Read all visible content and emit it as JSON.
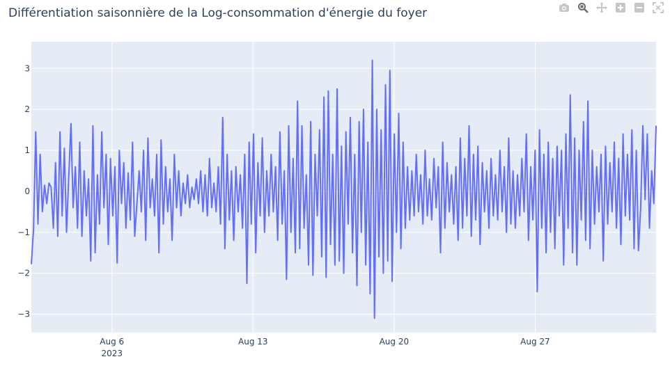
{
  "title": "Différentiation saisonnière de la Log-consommation d'énergie du foyer",
  "modebar": {
    "icons": [
      "camera-icon",
      "zoom-icon",
      "pan-icon",
      "zoom-in-icon",
      "zoom-out-icon",
      "autoscale-icon"
    ]
  },
  "colors": {
    "line": "#636efa",
    "plot_bg": "#e5ecf6",
    "grid": "#ffffff",
    "text": "#2a3f5f"
  },
  "chart_data": {
    "type": "line",
    "title": "Différentiation saisonnière de la Log-consommation d'énergie du foyer",
    "xlabel": "",
    "ylabel": "",
    "x_range": [
      "2023-08-02",
      "2023-09-02"
    ],
    "ylim": [
      -3.45,
      3.65
    ],
    "y_ticks": [
      3,
      2,
      1,
      0,
      -1,
      -2,
      -3
    ],
    "y_tick_labels": [
      "3",
      "2",
      "1",
      "0",
      "−1",
      "−2",
      "−3"
    ],
    "x_ticks": [
      {
        "label": "Aug 6",
        "sublabel": "2023"
      },
      {
        "label": "Aug 13",
        "sublabel": ""
      },
      {
        "label": "Aug 20",
        "sublabel": ""
      },
      {
        "label": "Aug 27",
        "sublabel": ""
      }
    ],
    "x_tick_dates": [
      "2023-08-06",
      "2023-08-13",
      "2023-08-20",
      "2023-08-27"
    ],
    "grid": true,
    "series": [
      {
        "x_start": "2023-08-02 00:00",
        "x_end": "2023-09-02 00:00",
        "y": [
          -1.78,
          -0.9,
          1.45,
          -0.8,
          0.9,
          -0.5,
          0.15,
          -0.3,
          0.2,
          0.1,
          -0.9,
          0.7,
          -1.1,
          1.45,
          -0.6,
          1.05,
          -1.0,
          0.35,
          1.65,
          -0.4,
          0.6,
          -0.9,
          1.2,
          -1.1,
          0.5,
          -0.6,
          0.3,
          -1.7,
          1.6,
          -1.5,
          0.4,
          -0.8,
          1.45,
          -0.4,
          0.9,
          -1.3,
          0.8,
          -0.6,
          0.6,
          -1.75,
          1.0,
          -0.3,
          0.7,
          -0.9,
          0.45,
          -0.7,
          1.2,
          -1.1,
          -0.3,
          0.5,
          -0.5,
          1.0,
          -1.2,
          1.3,
          -0.4,
          0.3,
          -0.6,
          0.9,
          -1.5,
          1.25,
          -0.8,
          0.6,
          -0.5,
          0.3,
          -1.2,
          0.9,
          -0.4,
          0.5,
          -0.6,
          0.2,
          -0.3,
          0.4,
          -0.4,
          0.1,
          -0.2,
          0.3,
          -0.3,
          0.5,
          -0.5,
          0.4,
          -0.6,
          0.8,
          -0.4,
          0.2,
          -0.5,
          0.6,
          -0.8,
          1.8,
          -1.4,
          0.9,
          -0.7,
          0.5,
          -1.2,
          0.6,
          -0.5,
          0.4,
          -0.9,
          0.9,
          -2.25,
          1.2,
          -0.8,
          1.4,
          -1.5,
          0.7,
          -0.6,
          1.3,
          -1.0,
          0.5,
          -0.6,
          0.9,
          -0.5,
          0.6,
          -1.2,
          1.45,
          -0.8,
          0.5,
          -2.15,
          1.6,
          -1.0,
          0.8,
          -1.5,
          2.2,
          -1.4,
          1.6,
          -0.9,
          0.4,
          -1.8,
          1.7,
          -2.05,
          0.9,
          -0.6,
          1.5,
          -1.6,
          2.3,
          -2.1,
          2.45,
          -1.3,
          0.9,
          -1.8,
          2.5,
          -1.7,
          1.1,
          -2.0,
          1.45,
          -0.8,
          1.8,
          -1.5,
          0.9,
          -2.3,
          1.7,
          -1.0,
          2.0,
          -1.8,
          1.2,
          -2.5,
          3.2,
          -3.1,
          2.0,
          -1.6,
          1.5,
          -2.0,
          2.6,
          -1.7,
          2.95,
          -2.2,
          1.4,
          -1.0,
          1.9,
          -1.4,
          1.2,
          -0.9,
          0.6,
          -0.7,
          0.5,
          -0.6,
          0.9,
          -0.5,
          0.4,
          -0.8,
          1.0,
          -0.6,
          0.3,
          -0.7,
          0.8,
          -0.4,
          0.6,
          -1.5,
          1.2,
          -0.9,
          0.7,
          -0.5,
          0.4,
          -0.8,
          0.6,
          -1.2,
          1.3,
          -0.9,
          0.8,
          -0.6,
          1.6,
          -1.1,
          0.9,
          -0.7,
          1.1,
          -1.3,
          0.7,
          -0.5,
          0.5,
          -0.9,
          0.8,
          -0.6,
          0.4,
          -0.7,
          1.0,
          -0.5,
          0.6,
          -1.0,
          1.3,
          -0.8,
          0.5,
          -0.9,
          0.4,
          -0.6,
          0.8,
          -0.5,
          1.4,
          -1.2,
          0.6,
          -0.7,
          1.0,
          -2.45,
          1.5,
          -0.9,
          0.9,
          -1.5,
          1.2,
          -1.0,
          0.8,
          -1.4,
          1.1,
          -0.6,
          1.0,
          -1.8,
          1.4,
          -0.9,
          2.35,
          -1.5,
          1.3,
          -1.8,
          1.0,
          -0.7,
          1.7,
          -1.2,
          2.2,
          -1.4,
          1.0,
          -0.8,
          0.6,
          -0.5,
          0.9,
          -1.7,
          1.1,
          -0.8,
          0.7,
          -0.5,
          1.2,
          -0.9,
          0.8,
          -1.3,
          1.4,
          -0.6,
          0.9,
          -0.7,
          1.5,
          -1.4,
          1.0,
          -1.45,
          -0.4,
          1.6,
          -0.2,
          1.4,
          -0.9,
          0.5,
          -0.3,
          1.6
        ]
      }
    ]
  }
}
